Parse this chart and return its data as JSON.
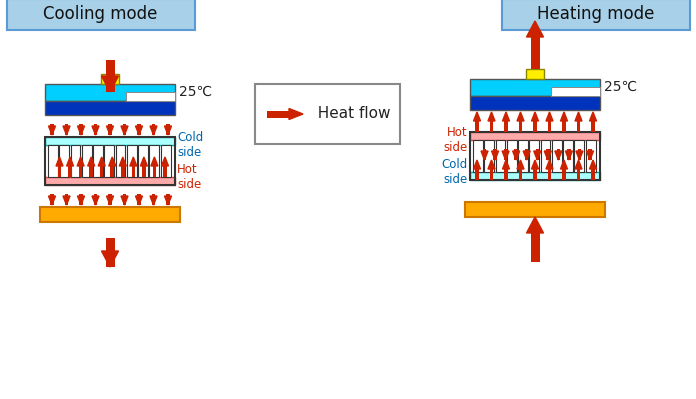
{
  "bg_color": "#ffffff",
  "cooling_label": "Cooling mode",
  "heating_label": "Heating mode",
  "heat_flow_label": "  Heat flow",
  "temp_label": "25℃",
  "cold_side_label": "Cold\nside",
  "hot_side_label": "Hot\nside",
  "label_box_bg": "#a8d0e8",
  "label_box_edge": "#5b9bd5",
  "liquid_top_color": "#00cfff",
  "liquid_bot_color": "#0033bb",
  "chip_color": "#ffee00",
  "heatsink_color": "#ffaa00",
  "heatsink_edge": "#cc7700",
  "tec_plate_cyan": "#aaffff",
  "tec_plate_red": "#ffaaaa",
  "tec_fill": "#ffffff",
  "tec_edge": "#333333",
  "arrow_color": "#cc2200",
  "text_color": "#222222",
  "cold_label_color": "#0066aa",
  "hot_label_color": "#cc2200"
}
